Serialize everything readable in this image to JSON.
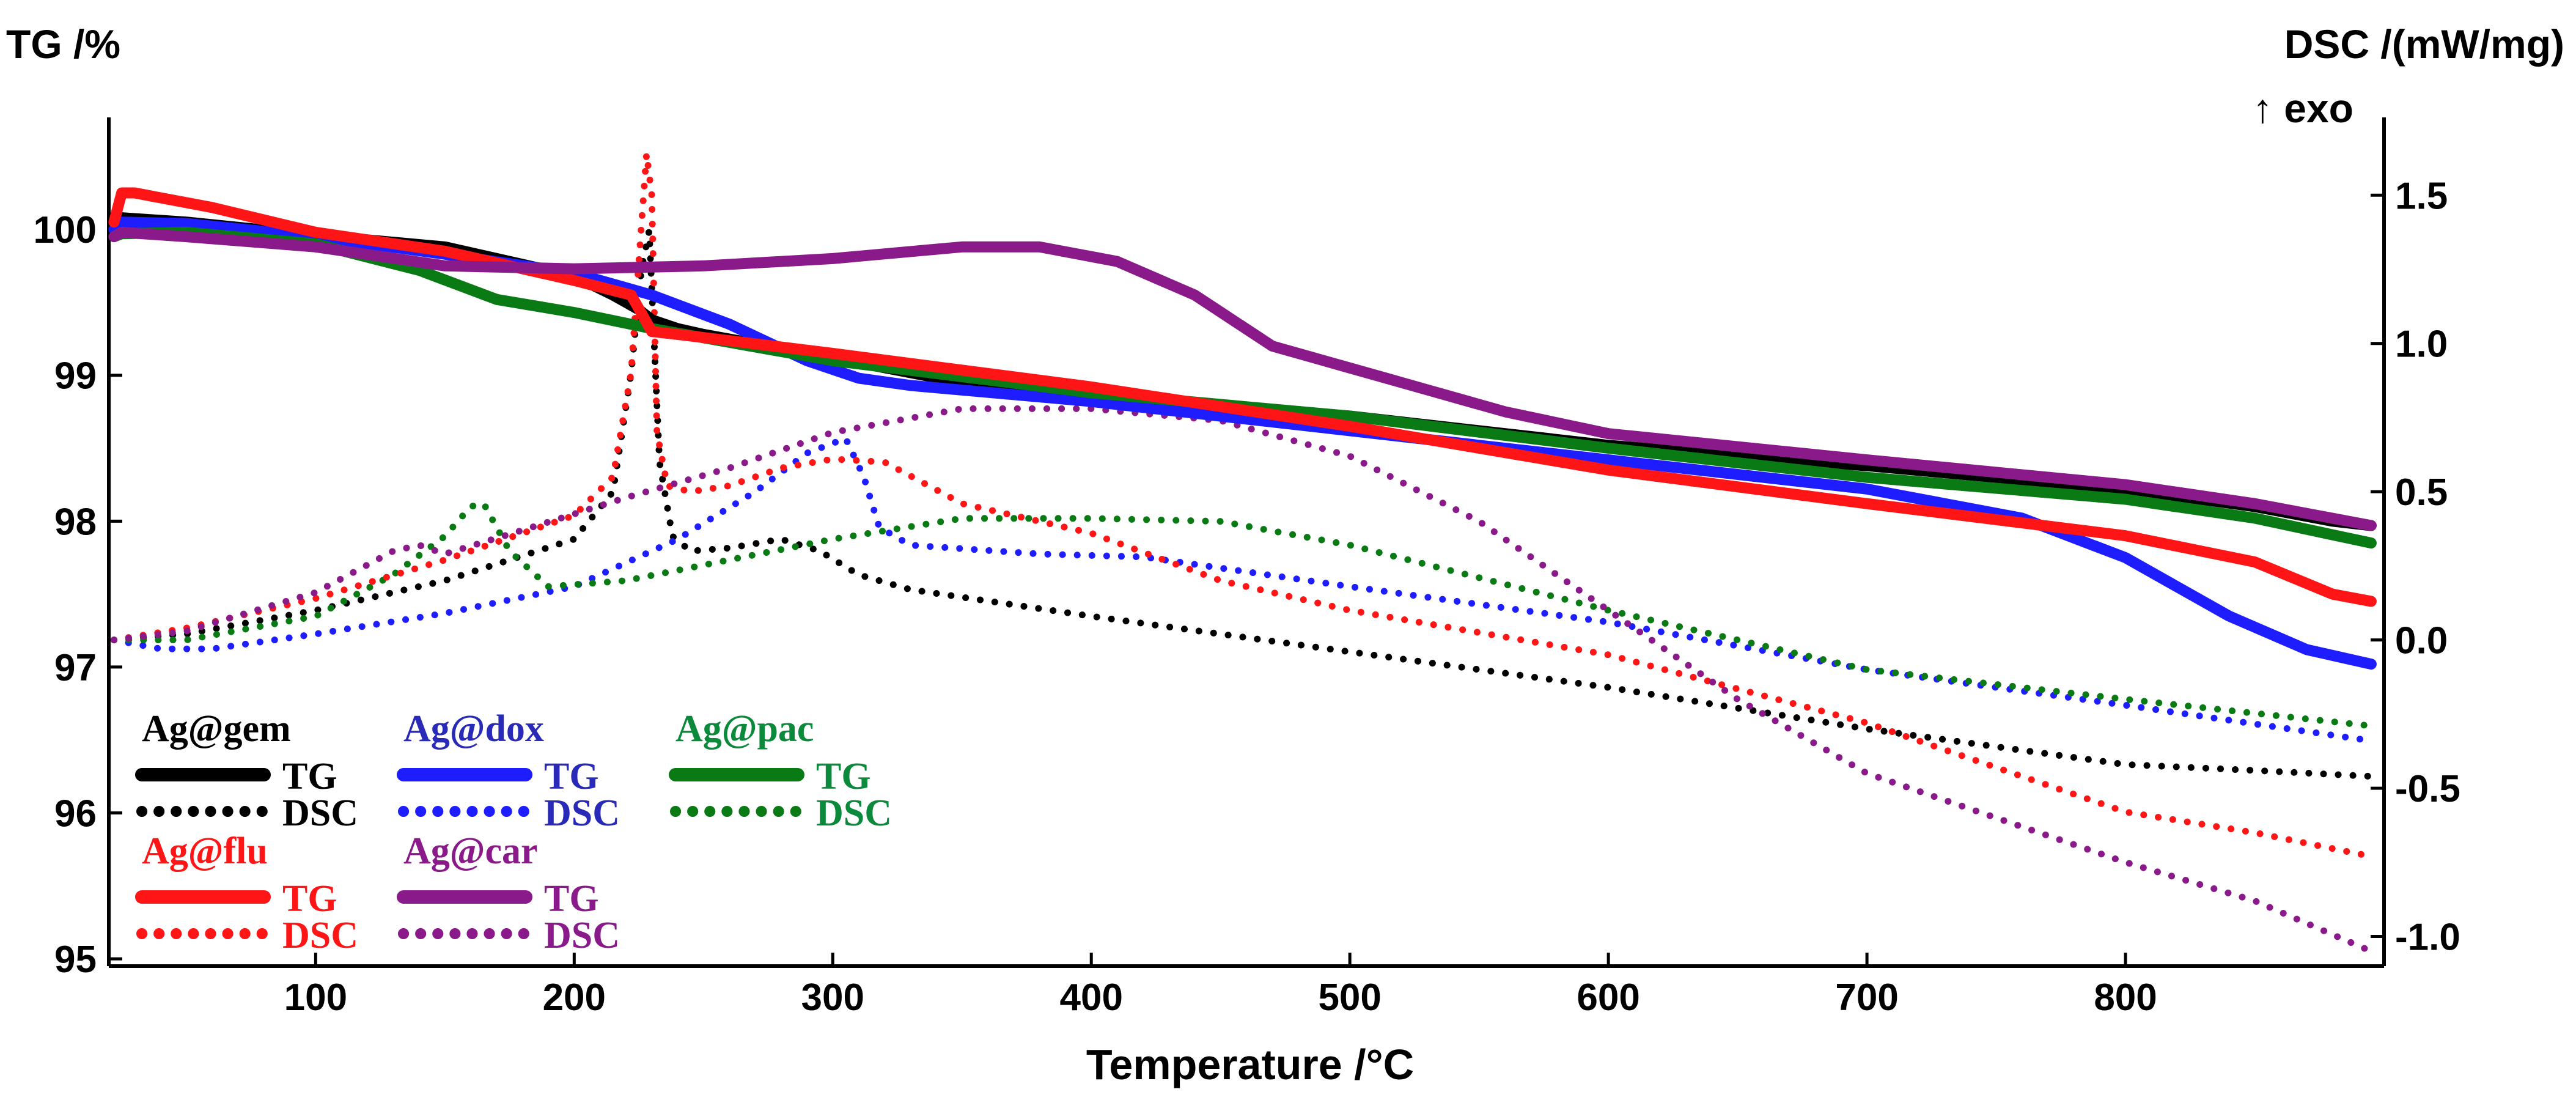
{
  "chart_data": {
    "type": "line",
    "xlabel": "Temperature /°C",
    "ylabel_left": "TG /%",
    "ylabel_right": "DSC /(mW/mg)",
    "ylabel_right_sub": "↑ exo",
    "xlim": [
      20,
      900
    ],
    "ylim_left": [
      94.95,
      100.6
    ],
    "ylim_right": [
      -1.1,
      1.68
    ],
    "x_ticks": [
      100,
      200,
      300,
      400,
      500,
      600,
      700,
      800
    ],
    "x_tick_labels": [
      "100",
      "200",
      "300",
      "400",
      "500",
      "600",
      "700",
      "800"
    ],
    "y_left_ticks": [
      95,
      96,
      97,
      98,
      99,
      100
    ],
    "y_left_tick_labels": [
      "95",
      "96",
      "97",
      "98",
      "99",
      "100"
    ],
    "y_right_ticks": [
      -1.0,
      -0.5,
      0.0,
      0.5,
      1.0,
      1.5
    ],
    "y_right_tick_labels": [
      "-1.0",
      "-0.5",
      "0.0",
      "0.5",
      "1.0",
      "1.5"
    ],
    "samples": [
      {
        "name": "Ag@gem",
        "color": "#000000",
        "tg_label": "TG",
        "dsc_label": "DSC"
      },
      {
        "name": "Ag@dox",
        "color": "#1d1dff",
        "text_color": "#2a2ab8",
        "tg_label": "TG",
        "dsc_label": "DSC"
      },
      {
        "name": "Ag@pac",
        "color": "#0a7a14",
        "text_color": "#0a8a3a",
        "tg_label": "TG",
        "dsc_label": "DSC"
      },
      {
        "name": "Ag@flu",
        "color": "#ff1515",
        "text_color": "#ff1515",
        "tg_label": "TG",
        "dsc_label": "DSC"
      },
      {
        "name": "Ag@car",
        "color": "#8a1a8a",
        "text_color": "#8a1a8a",
        "tg_label": "TG",
        "dsc_label": "DSC"
      }
    ],
    "series": [
      {
        "name": "Ag@gem TG",
        "sample": "Ag@gem",
        "axis": "left",
        "style": "solid",
        "x": [
          22,
          25,
          50,
          100,
          150,
          200,
          215,
          225,
          230,
          240,
          250,
          300,
          350,
          400,
          500,
          600,
          700,
          800,
          850,
          880,
          895
        ],
        "y": [
          100.0,
          100.08,
          100.05,
          99.96,
          99.88,
          99.68,
          99.55,
          99.45,
          99.38,
          99.32,
          99.28,
          99.12,
          98.95,
          98.85,
          98.72,
          98.52,
          98.38,
          98.22,
          98.1,
          98.0,
          97.97
        ]
      },
      {
        "name": "Ag@gem DSC",
        "sample": "Ag@gem",
        "axis": "right",
        "style": "dotted",
        "x": [
          22,
          50,
          100,
          150,
          200,
          215,
          222,
          226,
          229,
          233,
          238,
          245,
          260,
          280,
          295,
          310,
          330,
          400,
          500,
          600,
          700,
          800,
          850,
          895
        ],
        "y": [
          0.0,
          0.02,
          0.1,
          0.2,
          0.34,
          0.5,
          0.9,
          1.25,
          1.38,
          0.6,
          0.35,
          0.3,
          0.31,
          0.34,
          0.3,
          0.22,
          0.17,
          0.08,
          -0.04,
          -0.16,
          -0.3,
          -0.42,
          -0.44,
          -0.46
        ]
      },
      {
        "name": "Ag@dox TG",
        "sample": "Ag@dox",
        "axis": "left",
        "style": "solid",
        "x": [
          22,
          25,
          50,
          100,
          150,
          200,
          230,
          260,
          290,
          310,
          330,
          400,
          500,
          600,
          700,
          760,
          800,
          840,
          870,
          895
        ],
        "y": [
          100.0,
          100.05,
          100.04,
          99.95,
          99.83,
          99.7,
          99.55,
          99.35,
          99.1,
          98.98,
          98.93,
          98.82,
          98.62,
          98.42,
          98.22,
          98.02,
          97.75,
          97.35,
          97.12,
          97.02
        ]
      },
      {
        "name": "Ag@dox DSC",
        "sample": "Ag@dox",
        "axis": "right",
        "style": "dotted",
        "x": [
          22,
          40,
          60,
          100,
          150,
          200,
          240,
          270,
          290,
          305,
          312,
          318,
          330,
          380,
          420,
          500,
          600,
          700,
          800,
          895
        ],
        "y": [
          0.0,
          -0.03,
          -0.03,
          0.02,
          0.09,
          0.18,
          0.34,
          0.5,
          0.63,
          0.68,
          0.55,
          0.38,
          0.32,
          0.29,
          0.28,
          0.18,
          0.06,
          -0.1,
          -0.22,
          -0.34
        ]
      },
      {
        "name": "Ag@pac TG",
        "sample": "Ag@pac",
        "axis": "left",
        "style": "solid",
        "x": [
          22,
          25,
          50,
          100,
          140,
          170,
          200,
          230,
          300,
          400,
          500,
          600,
          700,
          800,
          850,
          895
        ],
        "y": [
          99.95,
          99.97,
          99.98,
          99.9,
          99.72,
          99.52,
          99.43,
          99.32,
          99.1,
          98.88,
          98.72,
          98.5,
          98.3,
          98.15,
          98.02,
          97.85
        ]
      },
      {
        "name": "Ag@pac DSC",
        "sample": "Ag@pac",
        "axis": "right",
        "style": "dotted",
        "x": [
          22,
          50,
          100,
          130,
          150,
          160,
          165,
          175,
          190,
          220,
          260,
          300,
          350,
          400,
          450,
          500,
          600,
          700,
          800,
          895
        ],
        "y": [
          0.0,
          0.0,
          0.08,
          0.22,
          0.35,
          0.45,
          0.46,
          0.3,
          0.18,
          0.2,
          0.27,
          0.34,
          0.41,
          0.41,
          0.4,
          0.32,
          0.1,
          -0.1,
          -0.2,
          -0.29
        ]
      },
      {
        "name": "Ag@flu TG",
        "sample": "Ag@flu",
        "axis": "left",
        "style": "solid",
        "x": [
          22,
          25,
          30,
          60,
          100,
          150,
          200,
          222,
          230,
          240,
          300,
          400,
          500,
          600,
          700,
          800,
          850,
          880,
          895
        ],
        "y": [
          100.05,
          100.25,
          100.25,
          100.15,
          99.98,
          99.85,
          99.65,
          99.55,
          99.3,
          99.28,
          99.15,
          98.92,
          98.65,
          98.35,
          98.12,
          97.9,
          97.72,
          97.5,
          97.45
        ]
      },
      {
        "name": "Ag@flu DSC",
        "sample": "Ag@flu",
        "axis": "right",
        "style": "dotted",
        "x": [
          22,
          50,
          100,
          150,
          200,
          215,
          222,
          226,
          228,
          230,
          232,
          236,
          245,
          260,
          280,
          300,
          320,
          350,
          400,
          450,
          500,
          600,
          700,
          800,
          850,
          895
        ],
        "y": [
          0.0,
          0.04,
          0.14,
          0.27,
          0.42,
          0.55,
          0.9,
          1.4,
          1.64,
          1.5,
          0.7,
          0.52,
          0.5,
          0.52,
          0.58,
          0.61,
          0.6,
          0.46,
          0.36,
          0.2,
          0.1,
          -0.05,
          -0.28,
          -0.58,
          -0.65,
          -0.73
        ]
      },
      {
        "name": "Ag@car TG",
        "sample": "Ag@car",
        "axis": "left",
        "style": "solid",
        "x": [
          22,
          25,
          50,
          100,
          150,
          200,
          250,
          300,
          350,
          380,
          410,
          440,
          470,
          500,
          530,
          560,
          600,
          700,
          800,
          850,
          895
        ],
        "y": [
          99.95,
          99.98,
          99.95,
          99.88,
          99.75,
          99.73,
          99.75,
          99.8,
          99.88,
          99.88,
          99.78,
          99.55,
          99.2,
          99.05,
          98.9,
          98.75,
          98.6,
          98.42,
          98.25,
          98.12,
          97.97
        ]
      },
      {
        "name": "Ag@car DSC",
        "sample": "Ag@car",
        "axis": "right",
        "style": "dotted",
        "x": [
          22,
          50,
          100,
          130,
          140,
          150,
          180,
          220,
          260,
          300,
          350,
          400,
          450,
          500,
          550,
          600,
          650,
          700,
          750,
          800,
          850,
          895
        ],
        "y": [
          0.0,
          0.03,
          0.16,
          0.3,
          0.32,
          0.29,
          0.37,
          0.48,
          0.58,
          0.7,
          0.78,
          0.78,
          0.74,
          0.62,
          0.4,
          0.1,
          -0.2,
          -0.45,
          -0.6,
          -0.75,
          -0.88,
          -1.05
        ]
      }
    ]
  }
}
